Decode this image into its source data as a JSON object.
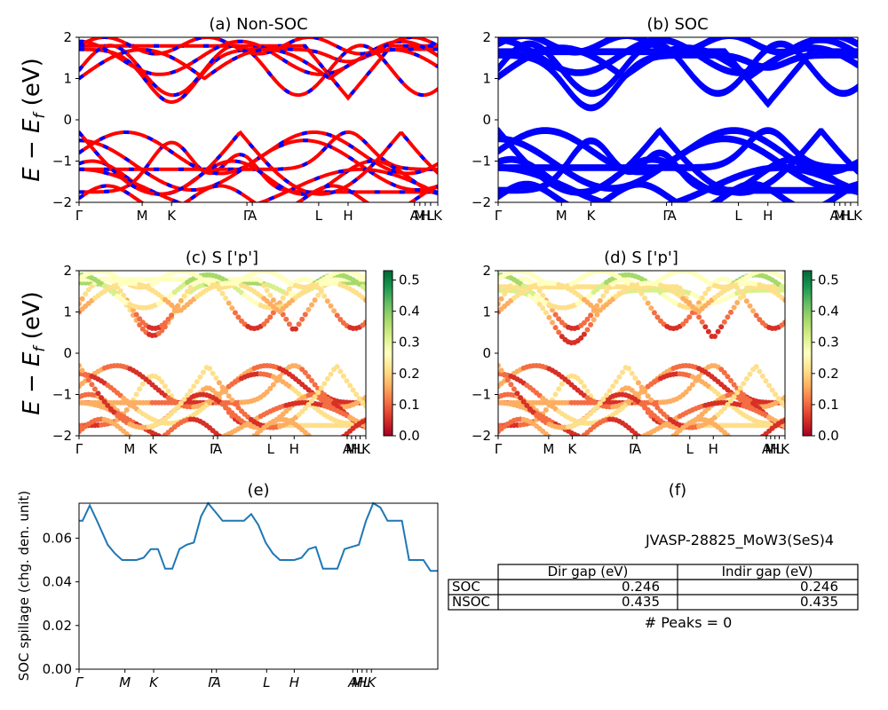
{
  "figure": {
    "panels": {
      "a": {
        "title": "(a) Non-SOC"
      },
      "b": {
        "title": "(b) SOC"
      },
      "c": {
        "title": "(c)  S ['p']"
      },
      "d": {
        "title": "(d) S ['p']"
      },
      "e": {
        "title": "(e)"
      },
      "f": {
        "title": "(f)"
      }
    },
    "band_ylabel_top": "E − E_f (eV)",
    "band_ylabel_mid": "E − E_f (eV)",
    "colors": {
      "nonsoc_red": "#ff0000",
      "nonsoc_blue": "#0000ff",
      "soc_blue": "#0000ff",
      "spillage_line": "#1f77b4"
    }
  },
  "chart_data": [
    {
      "id": "a",
      "type": "line",
      "title": "(a) Non-SOC",
      "ylabel": "E − E_f (eV)",
      "ylim": [
        -2,
        2
      ],
      "yticks": [
        -2,
        -1,
        0,
        1,
        2
      ],
      "xtick_labels": [
        "Γ",
        "M",
        "K",
        "Γ",
        "A",
        "L",
        "H",
        "A",
        "M",
        "H",
        "L",
        "K"
      ],
      "series": [
        {
          "name": "",
          "color": "#ff0000",
          "dash_color": "#0000ff"
        }
      ],
      "conduction_band_minimum_at_K": 0.43,
      "valence_band_maximum_at_K": 0.0
    },
    {
      "id": "b",
      "type": "line",
      "title": "(b) SOC",
      "ylim": [
        -2,
        2
      ],
      "yticks": [
        -2,
        -1,
        0,
        1,
        2
      ],
      "xtick_labels": [
        "Γ",
        "M",
        "K",
        "Γ",
        "A",
        "L",
        "H",
        "A",
        "M",
        "H",
        "L",
        "K"
      ],
      "series": [
        {
          "name": "",
          "color": "#0000ff"
        }
      ],
      "conduction_band_minimum_at_K": 0.25,
      "valence_band_maximum_at_K": 0.0
    },
    {
      "id": "c",
      "type": "scatter",
      "title": "(c)  S ['p']",
      "ylabel": "E − E_f (eV)",
      "ylim": [
        -2,
        2
      ],
      "yticks": [
        -2,
        -1,
        0,
        1,
        2
      ],
      "xtick_labels": [
        "Γ",
        "M",
        "K",
        "Γ",
        "A",
        "L",
        "H",
        "A",
        "M",
        "H",
        "L",
        "K"
      ],
      "colorbar": {
        "min": 0.0,
        "max": 0.53,
        "ticks": [
          "0.0",
          "0.1",
          "0.2",
          "0.3",
          "0.4",
          "0.5"
        ],
        "colormap": "RdYlGn"
      }
    },
    {
      "id": "d",
      "type": "scatter",
      "title": "(d) S ['p']",
      "ylim": [
        -2,
        2
      ],
      "yticks": [
        -2,
        -1,
        0,
        1,
        2
      ],
      "xtick_labels": [
        "Γ",
        "M",
        "K",
        "Γ",
        "A",
        "L",
        "H",
        "A",
        "M",
        "H",
        "L",
        "K"
      ],
      "colorbar": {
        "min": 0.0,
        "max": 0.53,
        "ticks": [
          "0.0",
          "0.1",
          "0.2",
          "0.3",
          "0.4",
          "0.5"
        ],
        "colormap": "RdYlGn"
      }
    },
    {
      "id": "e",
      "type": "line",
      "title": "(e)",
      "ylabel": "SOC spillage (chg. den. unit)",
      "ylim": [
        0.0,
        0.076
      ],
      "yticks": [
        "0.00",
        "0.02",
        "0.04",
        "0.06"
      ],
      "xtick_labels": [
        "Γ",
        "M",
        "K",
        "Γ",
        "A",
        "L",
        "H",
        "A",
        "M",
        "H",
        "L",
        "K"
      ],
      "series": [
        {
          "name": "",
          "x": [
            0,
            0.01,
            0.03,
            0.05,
            0.08,
            0.1,
            0.12,
            0.14,
            0.16,
            0.18,
            0.2,
            0.22,
            0.24,
            0.26,
            0.28,
            0.3,
            0.32,
            0.34,
            0.36,
            0.38,
            0.4,
            0.42,
            0.44,
            0.46,
            0.48,
            0.5,
            0.52,
            0.54,
            0.56,
            0.58,
            0.6,
            0.62,
            0.64,
            0.66,
            0.68,
            0.7,
            0.72,
            0.74,
            0.76,
            0.78,
            0.8,
            0.82,
            0.84,
            0.86,
            0.88,
            0.9,
            0.92,
            0.94,
            0.96,
            0.98,
            1.0
          ],
          "y": [
            0.068,
            0.068,
            0.075,
            0.068,
            0.057,
            0.053,
            0.05,
            0.05,
            0.05,
            0.051,
            0.055,
            0.055,
            0.046,
            0.046,
            0.055,
            0.057,
            0.058,
            0.07,
            0.076,
            0.072,
            0.068,
            0.068,
            0.068,
            0.068,
            0.071,
            0.066,
            0.058,
            0.053,
            0.05,
            0.05,
            0.05,
            0.051,
            0.055,
            0.056,
            0.046,
            0.046,
            0.046,
            0.055,
            0.056,
            0.057,
            0.068,
            0.076,
            0.074,
            0.068,
            0.068,
            0.068,
            0.05,
            0.05,
            0.05,
            0.045,
            0.045
          ]
        }
      ]
    }
  ],
  "info_panel": {
    "title": "(f)",
    "material": "JVASP-28825_MoW3(SeS)4",
    "table": {
      "headers": [
        "",
        "Dir gap (eV)",
        "Indir gap (eV)"
      ],
      "rows": [
        {
          "label": "SOC",
          "dir": "0.246",
          "indir": "0.246"
        },
        {
          "label": "NSOC",
          "dir": "0.435",
          "indir": "0.435"
        }
      ]
    },
    "peaks": "# Peaks = 0"
  }
}
